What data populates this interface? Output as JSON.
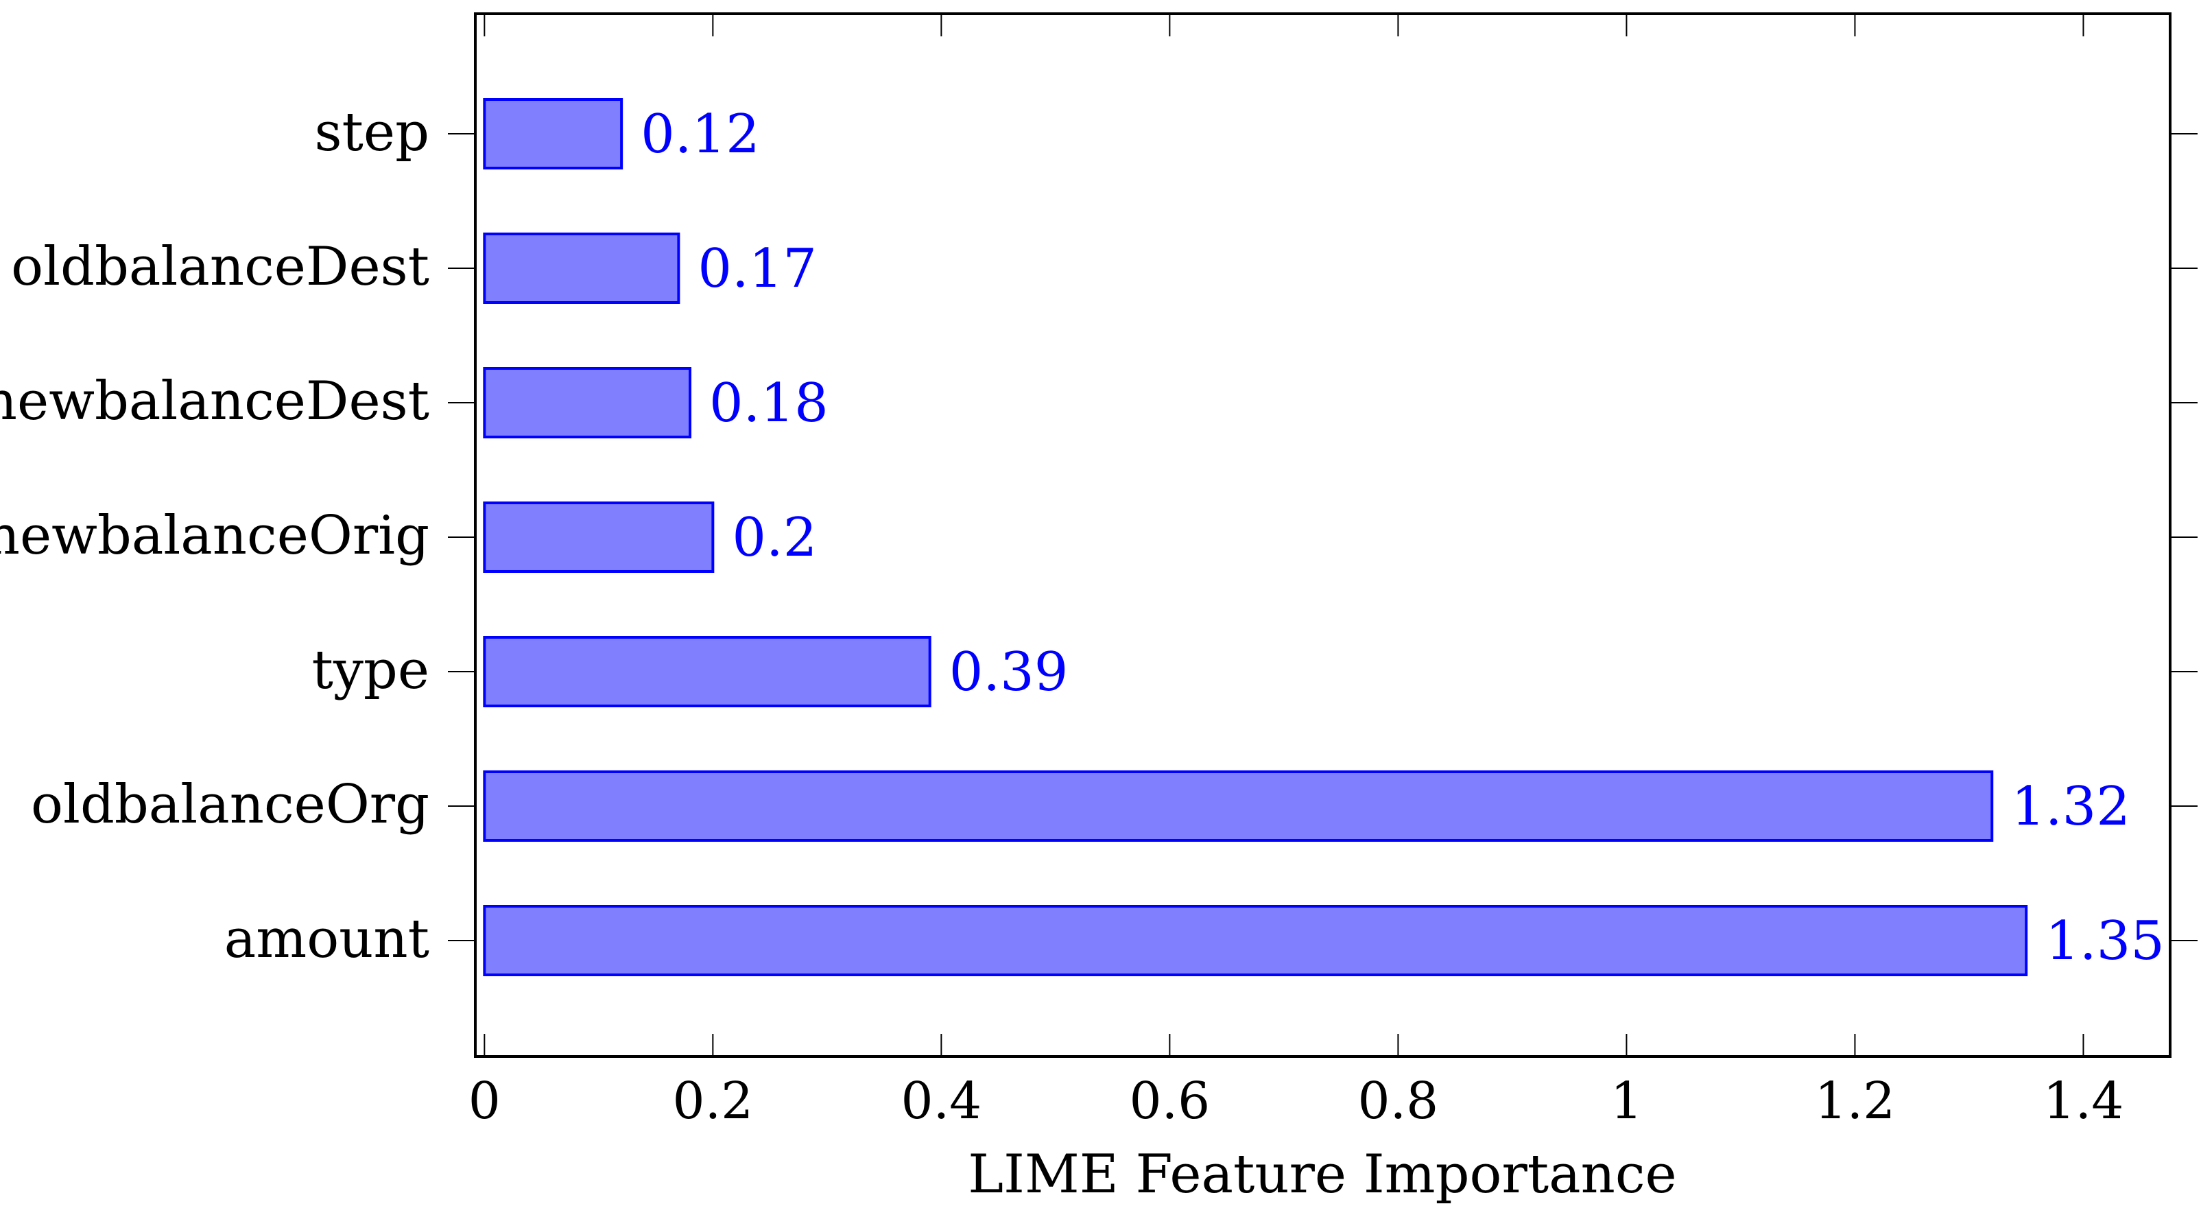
{
  "chart_data": {
    "type": "bar",
    "orientation": "horizontal",
    "title": "",
    "xlabel": "LIME Feature Importance",
    "ylabel": "",
    "categories": [
      "step",
      "oldbalanceDest",
      "newbalanceDest",
      "newbalanceOrig",
      "type",
      "oldbalanceOrg",
      "amount"
    ],
    "values": [
      0.12,
      0.17,
      0.18,
      0.2,
      0.39,
      1.32,
      1.35
    ],
    "value_labels": [
      "0.12",
      "0.17",
      "0.18",
      "0.2",
      "0.39",
      "1.32",
      "1.35"
    ],
    "xlim": [
      -0.008,
      1.476
    ],
    "xticks": [
      0,
      0.2,
      0.4,
      0.6,
      0.8,
      1,
      1.2,
      1.4
    ],
    "xtick_labels": [
      "0",
      "0.2",
      "0.4",
      "0.6",
      "0.8",
      "1",
      "1.2",
      "1.4"
    ],
    "grid": false,
    "legend": "none",
    "colors": {
      "bar_fill": "#8080ff",
      "bar_stroke": "#0000ff",
      "value_label": "#0000ff",
      "axis": "#000000"
    }
  }
}
